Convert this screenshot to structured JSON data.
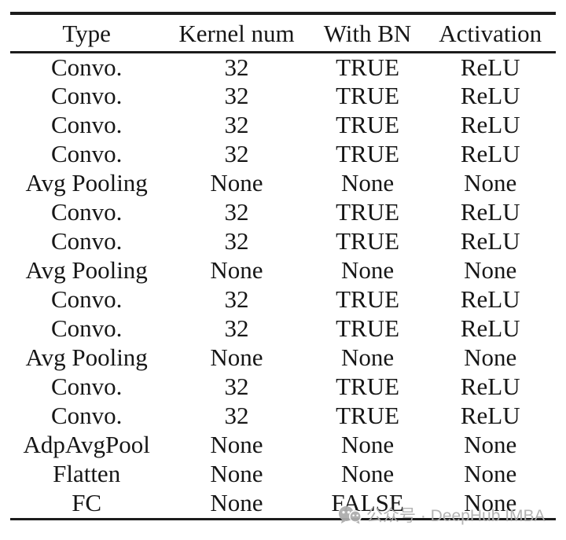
{
  "table": {
    "columns": [
      "Type",
      "Kernel num",
      "With BN",
      "Activation"
    ],
    "rows": [
      [
        "Convo.",
        "32",
        "TRUE",
        "ReLU"
      ],
      [
        "Convo.",
        "32",
        "TRUE",
        "ReLU"
      ],
      [
        "Convo.",
        "32",
        "TRUE",
        "ReLU"
      ],
      [
        "Convo.",
        "32",
        "TRUE",
        "ReLU"
      ],
      [
        "Avg Pooling",
        "None",
        "None",
        "None"
      ],
      [
        "Convo.",
        "32",
        "TRUE",
        "ReLU"
      ],
      [
        "Convo.",
        "32",
        "TRUE",
        "ReLU"
      ],
      [
        "Avg Pooling",
        "None",
        "None",
        "None"
      ],
      [
        "Convo.",
        "32",
        "TRUE",
        "ReLU"
      ],
      [
        "Convo.",
        "32",
        "TRUE",
        "ReLU"
      ],
      [
        "Avg Pooling",
        "None",
        "None",
        "None"
      ],
      [
        "Convo.",
        "32",
        "TRUE",
        "ReLU"
      ],
      [
        "Convo.",
        "32",
        "TRUE",
        "ReLU"
      ],
      [
        "AdpAvgPool",
        "None",
        "None",
        "None"
      ],
      [
        "Flatten",
        "None",
        "None",
        "None"
      ],
      [
        "FC",
        "None",
        "FALSE",
        "None"
      ]
    ]
  },
  "watermark": {
    "icon": "wechat-official-account-icon",
    "text": "公众号 · DeepHub IMBA"
  },
  "colors": {
    "text": "#161616",
    "rule": "#1c1c1c",
    "watermark": "#b0b0b0",
    "background": "#ffffff"
  }
}
